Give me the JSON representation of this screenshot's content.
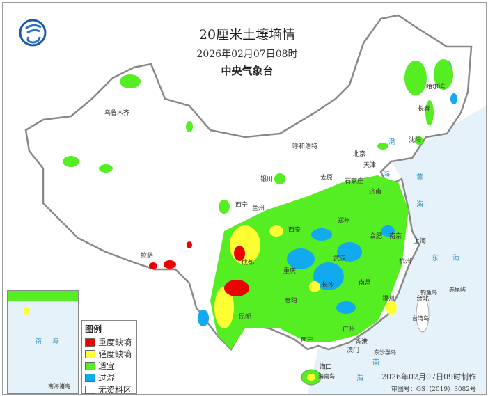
{
  "header": {
    "title": "20厘米土壤墒情",
    "datetime": "2026年02月07日08时",
    "issuer": "中央气象台",
    "logo": "cma-logo-icon"
  },
  "legend": {
    "title": "图例",
    "items": [
      {
        "label": "重度缺墒",
        "color": "#ee0000"
      },
      {
        "label": "轻度缺墒",
        "color": "#ffff33"
      },
      {
        "label": "适宜",
        "color": "#55ee22"
      },
      {
        "label": "过湿",
        "color": "#11aaee"
      },
      {
        "label": "无资料区",
        "color": "#ffffff"
      }
    ]
  },
  "cities": [
    "乌鲁木齐",
    "拉萨",
    "西宁",
    "兰州",
    "银川",
    "呼和浩特",
    "北京",
    "天津",
    "石家庄",
    "太原",
    "济南",
    "郑州",
    "西安",
    "成都",
    "重庆",
    "武汉",
    "合肥",
    "南京",
    "上海",
    "杭州",
    "长沙",
    "南昌",
    "福州",
    "贵阳",
    "昆明",
    "南宁",
    "广州",
    "香港",
    "澳门",
    "海口",
    "台北",
    "沈阳",
    "长春",
    "哈尔滨"
  ],
  "islands": [
    "钓鱼岛",
    "赤尾屿",
    "台湾岛",
    "东沙群岛",
    "海南岛"
  ],
  "seas": [
    "渤",
    "海",
    "黄",
    "海",
    "东",
    "海",
    "南",
    "海"
  ],
  "inset": {
    "label": "南海诸岛",
    "sea": [
      "南",
      "海"
    ]
  },
  "footer": {
    "made": "2026年02月07日09时制作",
    "approval": "审图号：GS（2019）3082号"
  },
  "colors": {
    "sea": "#e6f2fa",
    "border": "#888888"
  }
}
